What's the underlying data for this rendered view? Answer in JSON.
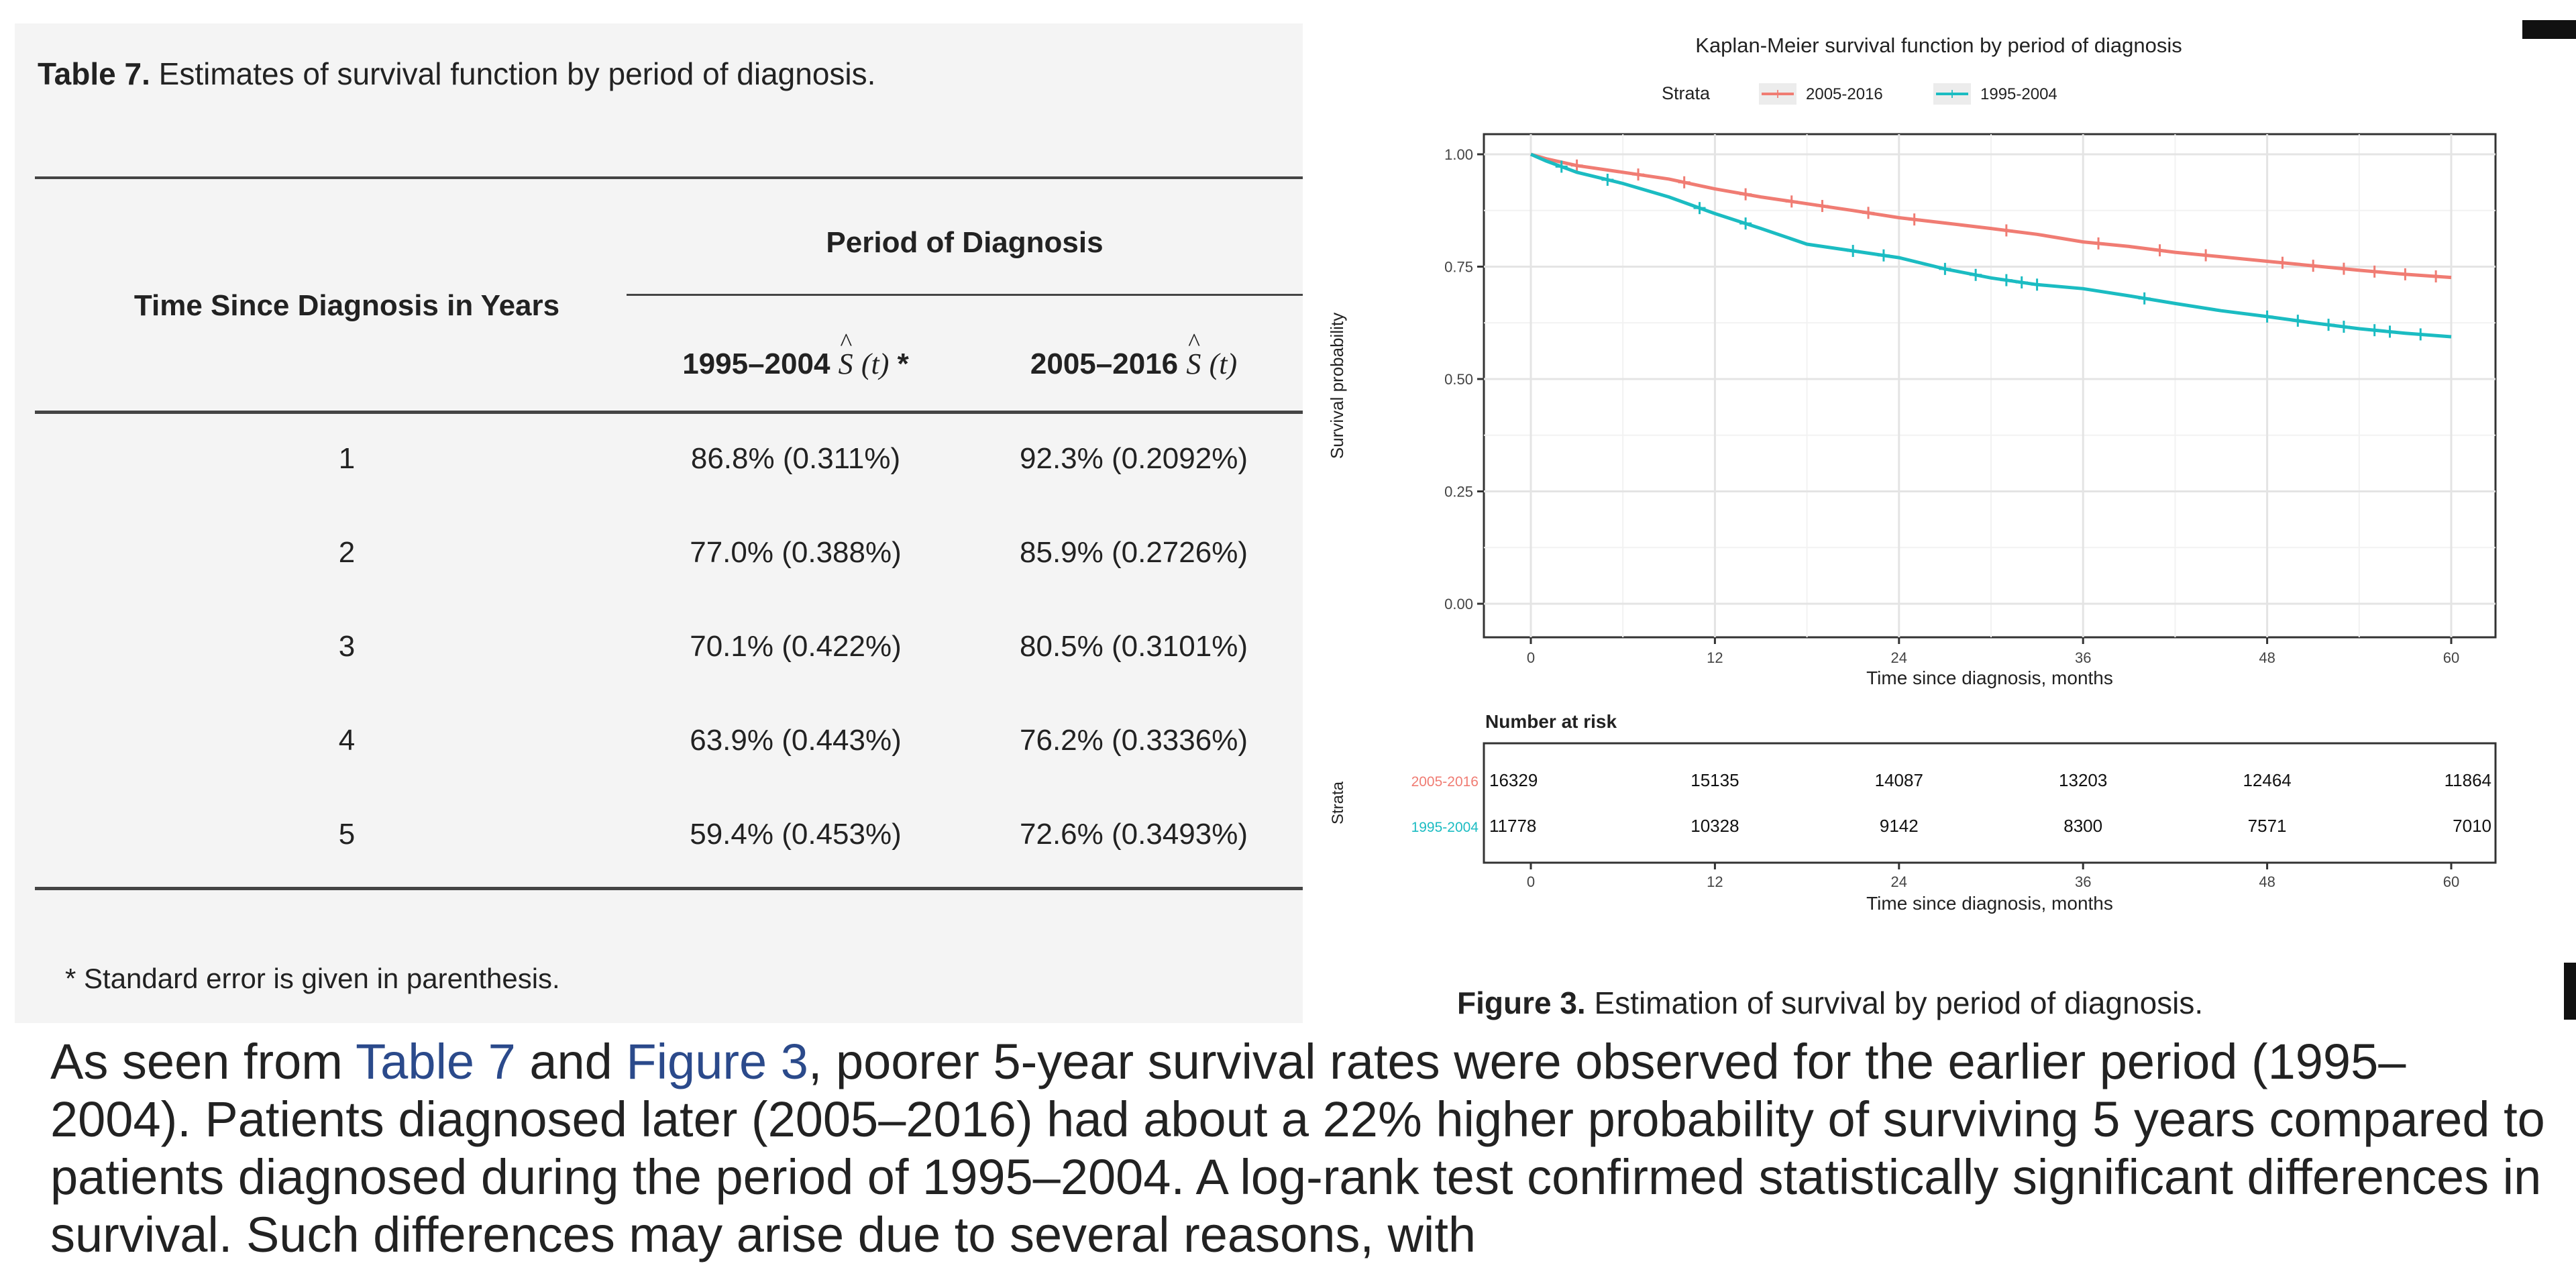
{
  "table": {
    "caption_label": "Table 7.",
    "caption_text": "Estimates of survival function by period of diagnosis.",
    "header_time": "Time Since Diagnosis in Years",
    "header_group": "Period of Diagnosis",
    "col1_period": "1995–2004",
    "col2_period": "2005–2016",
    "estimator_symbol": "S",
    "estimator_arg": "(t)",
    "col1_marker": "*",
    "rows": [
      {
        "year": "1",
        "p1": "86.8% (0.311%)",
        "p2": "92.3% (0.2092%)"
      },
      {
        "year": "2",
        "p1": "77.0% (0.388%)",
        "p2": "85.9% (0.2726%)"
      },
      {
        "year": "3",
        "p1": "70.1% (0.422%)",
        "p2": "80.5% (0.3101%)"
      },
      {
        "year": "4",
        "p1": "63.9% (0.443%)",
        "p2": "76.2% (0.3336%)"
      },
      {
        "year": "5",
        "p1": "59.4% (0.453%)",
        "p2": "72.6% (0.3493%)"
      }
    ],
    "footnote": "* Standard error is given in parenthesis."
  },
  "figure": {
    "caption_label": "Figure 3.",
    "caption_text": "Estimation of survival by period of diagnosis."
  },
  "chart_data": {
    "type": "line",
    "title": "Kaplan-Meier survival function by period of diagnosis",
    "legend_title": "Strata",
    "xlabel": "Time since diagnosis, months",
    "ylabel": "Survival probability",
    "xlim": [
      0,
      60
    ],
    "ylim": [
      0,
      1
    ],
    "x_ticks": [
      0,
      12,
      24,
      36,
      48,
      60
    ],
    "y_ticks": [
      "0.00",
      "0.25",
      "0.50",
      "0.75",
      "1.00"
    ],
    "grid": true,
    "series": [
      {
        "name": "2005-2016",
        "color": "#f07c73",
        "x": [
          0,
          1,
          3,
          6,
          9,
          12,
          15,
          18,
          21,
          24,
          27,
          30,
          33,
          36,
          39,
          42,
          45,
          48,
          51,
          54,
          57,
          60
        ],
        "y": [
          1.0,
          0.99,
          0.975,
          0.96,
          0.945,
          0.923,
          0.905,
          0.89,
          0.875,
          0.859,
          0.847,
          0.835,
          0.822,
          0.805,
          0.795,
          0.782,
          0.772,
          0.762,
          0.752,
          0.742,
          0.733,
          0.726
        ],
        "censor_x": [
          3,
          7,
          10,
          14,
          17,
          19,
          22,
          25,
          31,
          37,
          41,
          44,
          49,
          51,
          53,
          55,
          57,
          59
        ]
      },
      {
        "name": "1995-2004",
        "color": "#1bbcc2",
        "x": [
          0,
          1,
          3,
          6,
          9,
          12,
          15,
          18,
          21,
          24,
          27,
          30,
          33,
          36,
          39,
          42,
          45,
          48,
          51,
          54,
          57,
          60
        ],
        "y": [
          1.0,
          0.985,
          0.96,
          0.935,
          0.905,
          0.868,
          0.835,
          0.8,
          0.785,
          0.77,
          0.745,
          0.725,
          0.71,
          0.701,
          0.685,
          0.668,
          0.652,
          0.639,
          0.625,
          0.612,
          0.602,
          0.594
        ],
        "censor_x": [
          2,
          5,
          11,
          14,
          21,
          23,
          27,
          29,
          31,
          32,
          33,
          40,
          48,
          50,
          52,
          53,
          55,
          56,
          58
        ]
      }
    ],
    "risk_table": {
      "title": "Number at risk",
      "ylabel": "Strata",
      "xlabel": "Time since diagnosis, months",
      "rows": [
        {
          "name": "2005-2016",
          "color": "#f07c73",
          "values": [
            "16329",
            "15135",
            "14087",
            "13203",
            "12464",
            "11864"
          ]
        },
        {
          "name": "1995-2004",
          "color": "#1bbcc2",
          "values": [
            "11778",
            "10328",
            "9142",
            "8300",
            "7571",
            "7010"
          ]
        }
      ]
    }
  },
  "body": {
    "s1_start": "As seen from ",
    "ref_table": "Table 7",
    "s1_and": " and ",
    "ref_figure": "Figure 3",
    "s1_rest": ", poorer 5-year survival rates were observed for the earlier period (1995–2004). Patients diagnosed later (2005–2016) had about a 22% higher probability of surviving 5 years compared to patients diagnosed during the period of 1995–2004. A log-rank test confirmed statistically significant differences in survival. Such differences may arise due to several reasons, with"
  }
}
